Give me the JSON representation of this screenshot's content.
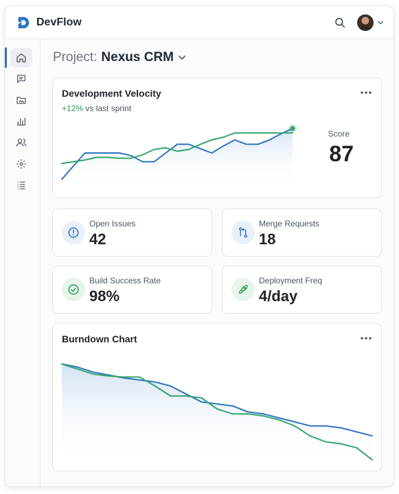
{
  "app": {
    "name": "DevFlow"
  },
  "header": {
    "search_icon": "search-icon",
    "avatar": "user-avatar",
    "menu_icon": "chevron-down-icon"
  },
  "sidebar": {
    "items": [
      {
        "id": "home",
        "icon": "home-icon",
        "active": true
      },
      {
        "id": "messages",
        "icon": "message-icon",
        "active": false
      },
      {
        "id": "files",
        "icon": "folder-image-icon",
        "active": false
      },
      {
        "id": "analytics",
        "icon": "bar-chart-icon",
        "active": false
      },
      {
        "id": "team",
        "icon": "users-icon",
        "active": false
      },
      {
        "id": "settings",
        "icon": "gear-icon",
        "active": false
      },
      {
        "id": "list",
        "icon": "list-icon",
        "active": false
      }
    ]
  },
  "project": {
    "prefix": "Project:",
    "name": "Nexus CRM"
  },
  "velocity": {
    "title": "Development Velocity",
    "delta": "+12%",
    "delta_text": "vs last sprint",
    "score_label": "Score",
    "score_value": "87"
  },
  "stats": [
    {
      "label": "Open Issues",
      "value": "42",
      "icon": "alert-circle-icon",
      "color": "#2f74c0",
      "bg": "#e8f0fa"
    },
    {
      "label": "Merge Requests",
      "value": "18",
      "icon": "git-merge-icon",
      "color": "#2f74c0",
      "bg": "#e8f0fa"
    },
    {
      "label": "Build Success Rate",
      "value": "98%",
      "icon": "check-circle-icon",
      "color": "#2e9a5a",
      "bg": "#e6f5ec"
    },
    {
      "label": "Deployment Freq",
      "value": "4/day",
      "icon": "rocket-icon",
      "color": "#2e9a5a",
      "bg": "#e6f5ec"
    }
  ],
  "burndown": {
    "title": "Burndown Chart"
  },
  "chart_data": [
    {
      "type": "line",
      "title": "Development Velocity",
      "x": [
        0,
        1,
        2,
        3,
        4,
        5,
        6,
        7,
        8,
        9,
        10,
        11,
        12,
        13,
        14,
        15,
        16,
        17,
        18,
        19,
        20
      ],
      "series": [
        {
          "color": "#2f74c0",
          "values": [
            10,
            25,
            40,
            40,
            40,
            40,
            37,
            30,
            30,
            40,
            50,
            50,
            45,
            40,
            48,
            55,
            50,
            50,
            55,
            62,
            68
          ]
        },
        {
          "color": "#35a56a",
          "values": [
            28,
            30,
            32,
            35,
            35,
            34,
            34,
            38,
            44,
            46,
            42,
            44,
            50,
            55,
            58,
            63,
            63,
            63,
            63,
            63,
            63
          ]
        }
      ],
      "ylim": [
        0,
        80
      ],
      "grid": false
    },
    {
      "type": "line",
      "title": "Burndown Chart",
      "x": [
        0,
        1,
        2,
        3,
        4,
        5,
        6,
        7,
        8,
        9,
        10,
        11,
        12,
        13,
        14,
        15,
        16,
        17,
        18,
        19,
        20
      ],
      "series": [
        {
          "color": "#2f74c0",
          "values": [
            100,
            97,
            92,
            89,
            86,
            84,
            82,
            78,
            70,
            62,
            60,
            58,
            52,
            50,
            46,
            42,
            38,
            38,
            36,
            32,
            28
          ]
        },
        {
          "color": "#35a56a",
          "values": [
            100,
            95,
            90,
            88,
            87,
            87,
            78,
            68,
            68,
            66,
            55,
            50,
            50,
            48,
            44,
            38,
            28,
            22,
            20,
            16,
            4
          ]
        }
      ],
      "ylim": [
        0,
        110
      ],
      "grid": false
    }
  ]
}
